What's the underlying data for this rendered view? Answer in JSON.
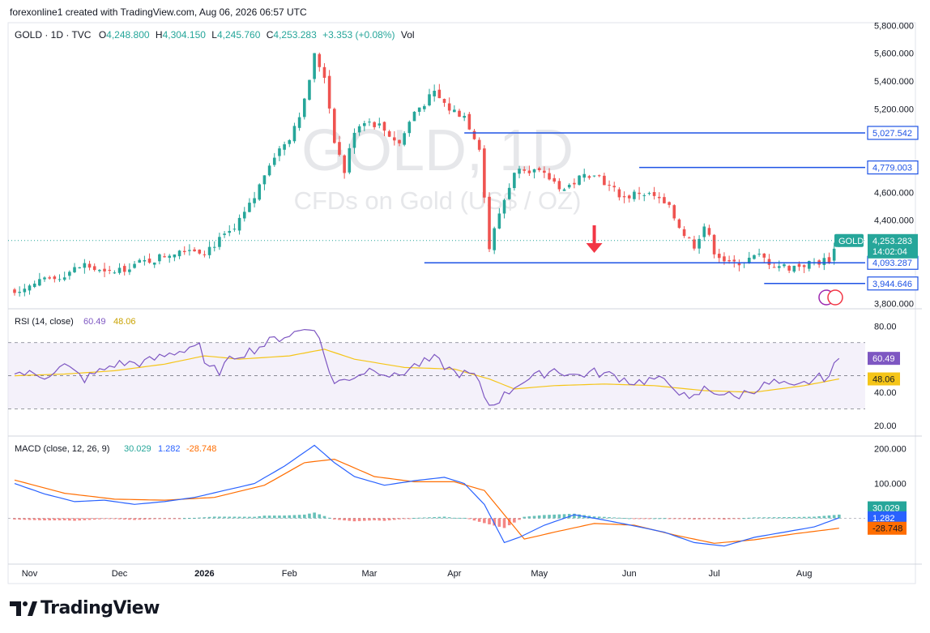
{
  "header": {
    "created_by": "forexonline1 created with TradingView.com, Aug 06, 2026 06:57 UTC",
    "symbol_line": "GOLD · 1D · TVC",
    "open_label": "O",
    "open": "4,248.800",
    "high_label": "H",
    "high": "4,304.150",
    "low_label": "L",
    "low": "4,245.760",
    "close_label": "C",
    "close": "4,253.283",
    "change": "+3.353 (+0.08%)",
    "vol_label": "Vol"
  },
  "watermark": {
    "line1": "GOLD, 1D",
    "line2": "CFDs on Gold (US$ / OZ)"
  },
  "brand": "TradingView",
  "colors": {
    "up": "#26a69a",
    "down": "#ef5350",
    "level_line": "#1e53e5",
    "rsi": "#7e57c2",
    "rsi_ma": "#f5c518",
    "macd": "#2962ff",
    "signal": "#ff6d00",
    "arrow": "#f23645"
  },
  "chart_data": [
    {
      "type": "candlestick",
      "title": "GOLD · 1D · TVC",
      "y_ticks": [
        "5,800.000",
        "5,600.000",
        "5,400.000",
        "5,200.000",
        "4,600.000",
        "4,400.000",
        "3,800.000"
      ],
      "ylim": [
        3780,
        5820
      ],
      "x_ticks": [
        "Nov",
        "Dec",
        "2026",
        "Feb",
        "Mar",
        "Apr",
        "May",
        "Jun",
        "Jul",
        "Aug"
      ],
      "price_path": [
        [
          0,
          3900
        ],
        [
          8,
          3980
        ],
        [
          14,
          4080
        ],
        [
          18,
          4010
        ],
        [
          23,
          4070
        ],
        [
          28,
          4120
        ],
        [
          34,
          4200
        ],
        [
          38,
          4180
        ],
        [
          44,
          4330
        ],
        [
          48,
          4560
        ],
        [
          51,
          4820
        ],
        [
          55,
          5000
        ],
        [
          58,
          5250
        ],
        [
          60,
          5580
        ],
        [
          62,
          5440
        ],
        [
          64,
          4980
        ],
        [
          66,
          4750
        ],
        [
          68,
          5050
        ],
        [
          70,
          5120
        ],
        [
          73,
          5080
        ],
        [
          77,
          4950
        ],
        [
          80,
          5180
        ],
        [
          84,
          5310
        ],
        [
          87,
          5200
        ],
        [
          90,
          5150
        ],
        [
          93,
          4930
        ],
        [
          95,
          4200
        ],
        [
          97,
          4450
        ],
        [
          99,
          4650
        ],
        [
          101,
          4800
        ],
        [
          104,
          4750
        ],
        [
          107,
          4700
        ],
        [
          110,
          4620
        ],
        [
          113,
          4700
        ],
        [
          116,
          4750
        ],
        [
          119,
          4640
        ],
        [
          122,
          4560
        ],
        [
          125,
          4600
        ],
        [
          128,
          4570
        ],
        [
          131,
          4480
        ],
        [
          134,
          4300
        ],
        [
          136,
          4220
        ],
        [
          138,
          4360
        ],
        [
          140,
          4180
        ],
        [
          143,
          4080
        ],
        [
          146,
          4110
        ],
        [
          149,
          4140
        ],
        [
          152,
          4080
        ],
        [
          155,
          4060
        ],
        [
          158,
          4080
        ],
        [
          161,
          4100
        ],
        [
          163,
          4120
        ],
        [
          165,
          4253
        ]
      ],
      "levels": [
        {
          "label": "5,027.542",
          "value": 5027.542
        },
        {
          "label": "4,779.003",
          "value": 4779.003
        },
        {
          "label": "4,093.287",
          "value": 4093.287
        },
        {
          "label": "3,944.646",
          "value": 3944.646
        }
      ],
      "last_price": {
        "symbol": "GOLD",
        "value": "4,253.283",
        "countdown": "14:02:04"
      }
    },
    {
      "type": "line",
      "title": "RSI (14, close)",
      "values_shown": [
        "60.49",
        "48.06"
      ],
      "y_ticks": [
        "80.00",
        "40.00",
        "20.00"
      ],
      "bands": [
        30,
        70
      ],
      "ylim": [
        15,
        88
      ],
      "rsi_path": [
        [
          0,
          52
        ],
        [
          6,
          50
        ],
        [
          10,
          56
        ],
        [
          14,
          48
        ],
        [
          20,
          57
        ],
        [
          26,
          58
        ],
        [
          30,
          62
        ],
        [
          34,
          66
        ],
        [
          37,
          70
        ],
        [
          38,
          55
        ],
        [
          41,
          53
        ],
        [
          44,
          62
        ],
        [
          48,
          66
        ],
        [
          52,
          72
        ],
        [
          56,
          76
        ],
        [
          60,
          80
        ],
        [
          62,
          62
        ],
        [
          64,
          45
        ],
        [
          68,
          50
        ],
        [
          72,
          55
        ],
        [
          76,
          49
        ],
        [
          80,
          56
        ],
        [
          84,
          60
        ],
        [
          88,
          52
        ],
        [
          92,
          50
        ],
        [
          95,
          32
        ],
        [
          98,
          38
        ],
        [
          101,
          46
        ],
        [
          104,
          49
        ],
        [
          108,
          54
        ],
        [
          112,
          50
        ],
        [
          116,
          52
        ],
        [
          120,
          50
        ],
        [
          124,
          46
        ],
        [
          128,
          48
        ],
        [
          132,
          44
        ],
        [
          135,
          34
        ],
        [
          138,
          42
        ],
        [
          141,
          40
        ],
        [
          144,
          37
        ],
        [
          148,
          42
        ],
        [
          152,
          46
        ],
        [
          156,
          42
        ],
        [
          160,
          48
        ],
        [
          163,
          50
        ],
        [
          165,
          60.49
        ]
      ],
      "ma_path": [
        [
          0,
          50
        ],
        [
          10,
          51
        ],
        [
          20,
          53
        ],
        [
          30,
          57
        ],
        [
          38,
          62
        ],
        [
          45,
          60
        ],
        [
          55,
          62
        ],
        [
          62,
          66
        ],
        [
          68,
          60
        ],
        [
          78,
          55
        ],
        [
          88,
          54
        ],
        [
          95,
          48
        ],
        [
          100,
          42
        ],
        [
          108,
          44
        ],
        [
          118,
          45
        ],
        [
          128,
          44
        ],
        [
          138,
          41
        ],
        [
          148,
          40
        ],
        [
          158,
          44
        ],
        [
          165,
          48.06
        ]
      ]
    },
    {
      "type": "line",
      "title": "MACD (close, 12, 26, 9)",
      "values_shown": [
        "30.029",
        "1.282",
        "-28.748"
      ],
      "y_ticks": [
        "200.000",
        "100.000"
      ],
      "ylim": [
        -125,
        225
      ],
      "macd_path": [
        [
          0,
          100
        ],
        [
          6,
          70
        ],
        [
          12,
          48
        ],
        [
          18,
          52
        ],
        [
          24,
          40
        ],
        [
          30,
          48
        ],
        [
          36,
          60
        ],
        [
          42,
          80
        ],
        [
          48,
          100
        ],
        [
          54,
          150
        ],
        [
          60,
          210
        ],
        [
          64,
          160
        ],
        [
          68,
          120
        ],
        [
          74,
          95
        ],
        [
          80,
          108
        ],
        [
          86,
          118
        ],
        [
          90,
          100
        ],
        [
          94,
          40
        ],
        [
          98,
          -70
        ],
        [
          101,
          -55
        ],
        [
          106,
          -20
        ],
        [
          112,
          10
        ],
        [
          118,
          -5
        ],
        [
          124,
          -22
        ],
        [
          130,
          -40
        ],
        [
          136,
          -70
        ],
        [
          142,
          -80
        ],
        [
          148,
          -55
        ],
        [
          154,
          -40
        ],
        [
          160,
          -25
        ],
        [
          165,
          1.282
        ]
      ],
      "signal_path": [
        [
          0,
          110
        ],
        [
          10,
          72
        ],
        [
          20,
          55
        ],
        [
          30,
          52
        ],
        [
          40,
          60
        ],
        [
          50,
          95
        ],
        [
          58,
          160
        ],
        [
          64,
          170
        ],
        [
          72,
          120
        ],
        [
          80,
          105
        ],
        [
          88,
          105
        ],
        [
          94,
          80
        ],
        [
          98,
          10
        ],
        [
          102,
          -60
        ],
        [
          108,
          -40
        ],
        [
          116,
          -15
        ],
        [
          124,
          -20
        ],
        [
          132,
          -48
        ],
        [
          140,
          -72
        ],
        [
          148,
          -62
        ],
        [
          156,
          -45
        ],
        [
          165,
          -28.748
        ]
      ]
    }
  ]
}
